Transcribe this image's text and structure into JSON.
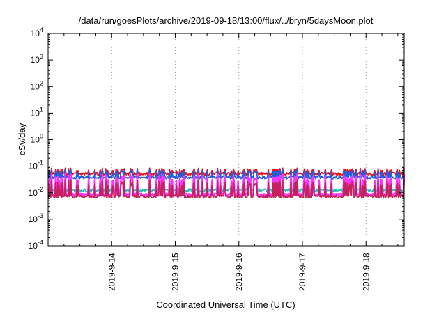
{
  "chart_data": {
    "type": "line",
    "title": "/data/run/goesPlots/archive/2019-09-18/13:00/flux/../bryn/5daysMoon.plot",
    "xlabel": "Coordinated Universal Time (UTC)",
    "ylabel": "cSv/day",
    "yscale": "log",
    "ylim": [
      0.0001,
      10000
    ],
    "xlim": [
      0.0,
      5.6
    ],
    "grid": "dotted vertical at day ticks",
    "y_ticks": [
      {
        "value": 0.0001,
        "base": "10",
        "exp": "-4"
      },
      {
        "value": 0.001,
        "base": "10",
        "exp": "-3"
      },
      {
        "value": 0.01,
        "base": "10",
        "exp": "-2"
      },
      {
        "value": 0.1,
        "base": "10",
        "exp": "-1"
      },
      {
        "value": 1,
        "base": "10",
        "exp": "0"
      },
      {
        "value": 10,
        "base": "10",
        "exp": "1"
      },
      {
        "value": 100,
        "base": "10",
        "exp": "2"
      },
      {
        "value": 1000,
        "base": "10",
        "exp": "3"
      },
      {
        "value": 10000,
        "base": "10",
        "exp": "4"
      }
    ],
    "x_ticks": [
      {
        "pos": 1,
        "label": "2019-9-14"
      },
      {
        "pos": 2,
        "label": "2019-9-15"
      },
      {
        "pos": 3,
        "label": "2019-9-16"
      },
      {
        "pos": 4,
        "label": "2019-9-17"
      },
      {
        "pos": 5,
        "label": "2019-9-18"
      }
    ],
    "series": [
      {
        "color": "#e8101a",
        "base": 0.052,
        "spike": 0.085
      },
      {
        "color": "#1f5fe0",
        "base": 0.038,
        "spike": 0.075
      },
      {
        "color": "#1ec0b0",
        "base": 0.0125,
        "spike": 0.045
      },
      {
        "color": "#ff33ff",
        "base": 0.0085,
        "spike": 0.05
      },
      {
        "color": "#c4225a",
        "base": 0.0072,
        "spike": 0.03
      }
    ]
  }
}
